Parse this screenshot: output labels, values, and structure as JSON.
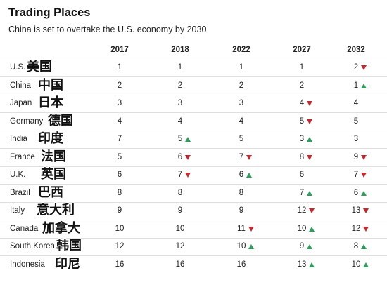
{
  "title": "Trading Places",
  "subtitle": "China is set to overtake the U.S. economy by 2030",
  "years": [
    "2017",
    "2018",
    "2022",
    "2027",
    "2032"
  ],
  "colors": {
    "up": "#2e9e5c",
    "down": "#c8282d"
  },
  "rows": [
    {
      "country": "U.S.",
      "cn": "美国",
      "ranks": [
        {
          "v": "1",
          "t": ""
        },
        {
          "v": "1",
          "t": ""
        },
        {
          "v": "1",
          "t": ""
        },
        {
          "v": "1",
          "t": ""
        },
        {
          "v": "2",
          "t": "down"
        }
      ]
    },
    {
      "country": "China",
      "cn": "中国",
      "ranks": [
        {
          "v": "2",
          "t": ""
        },
        {
          "v": "2",
          "t": ""
        },
        {
          "v": "2",
          "t": ""
        },
        {
          "v": "2",
          "t": ""
        },
        {
          "v": "1",
          "t": "up"
        }
      ]
    },
    {
      "country": "Japan",
      "cn": "日本",
      "ranks": [
        {
          "v": "3",
          "t": ""
        },
        {
          "v": "3",
          "t": ""
        },
        {
          "v": "3",
          "t": ""
        },
        {
          "v": "4",
          "t": "down"
        },
        {
          "v": "4",
          "t": ""
        }
      ]
    },
    {
      "country": "Germany",
      "cn": "德国",
      "ranks": [
        {
          "v": "4",
          "t": ""
        },
        {
          "v": "4",
          "t": ""
        },
        {
          "v": "4",
          "t": ""
        },
        {
          "v": "5",
          "t": "down"
        },
        {
          "v": "5",
          "t": ""
        }
      ]
    },
    {
      "country": "India",
      "cn": "印度",
      "ranks": [
        {
          "v": "7",
          "t": ""
        },
        {
          "v": "5",
          "t": "up"
        },
        {
          "v": "5",
          "t": ""
        },
        {
          "v": "3",
          "t": "up"
        },
        {
          "v": "3",
          "t": ""
        }
      ]
    },
    {
      "country": "France",
      "cn": "法国",
      "ranks": [
        {
          "v": "5",
          "t": ""
        },
        {
          "v": "6",
          "t": "down"
        },
        {
          "v": "7",
          "t": "down"
        },
        {
          "v": "8",
          "t": "down"
        },
        {
          "v": "9",
          "t": "down"
        }
      ]
    },
    {
      "country": "U.K.",
      "cn": "英国",
      "ranks": [
        {
          "v": "6",
          "t": ""
        },
        {
          "v": "7",
          "t": "down"
        },
        {
          "v": "6",
          "t": "up"
        },
        {
          "v": "6",
          "t": ""
        },
        {
          "v": "7",
          "t": "down"
        }
      ]
    },
    {
      "country": "Brazil",
      "cn": "巴西",
      "ranks": [
        {
          "v": "8",
          "t": ""
        },
        {
          "v": "8",
          "t": ""
        },
        {
          "v": "8",
          "t": ""
        },
        {
          "v": "7",
          "t": "up"
        },
        {
          "v": "6",
          "t": "up"
        }
      ]
    },
    {
      "country": "Italy",
      "cn": "意大利",
      "ranks": [
        {
          "v": "9",
          "t": ""
        },
        {
          "v": "9",
          "t": ""
        },
        {
          "v": "9",
          "t": ""
        },
        {
          "v": "12",
          "t": "down"
        },
        {
          "v": "13",
          "t": "down"
        }
      ]
    },
    {
      "country": "Canada",
      "cn": "加拿大",
      "ranks": [
        {
          "v": "10",
          "t": ""
        },
        {
          "v": "10",
          "t": ""
        },
        {
          "v": "11",
          "t": "down"
        },
        {
          "v": "10",
          "t": "up"
        },
        {
          "v": "12",
          "t": "down"
        }
      ]
    },
    {
      "country": "South Korea",
      "cn": "韩国",
      "ranks": [
        {
          "v": "12",
          "t": ""
        },
        {
          "v": "12",
          "t": ""
        },
        {
          "v": "10",
          "t": "up"
        },
        {
          "v": "9",
          "t": "up"
        },
        {
          "v": "8",
          "t": "up"
        }
      ]
    },
    {
      "country": "Indonesia",
      "cn": "印尼",
      "ranks": [
        {
          "v": "16",
          "t": ""
        },
        {
          "v": "16",
          "t": ""
        },
        {
          "v": "16",
          "t": ""
        },
        {
          "v": "13",
          "t": "up"
        },
        {
          "v": "10",
          "t": "up"
        }
      ]
    }
  ]
}
